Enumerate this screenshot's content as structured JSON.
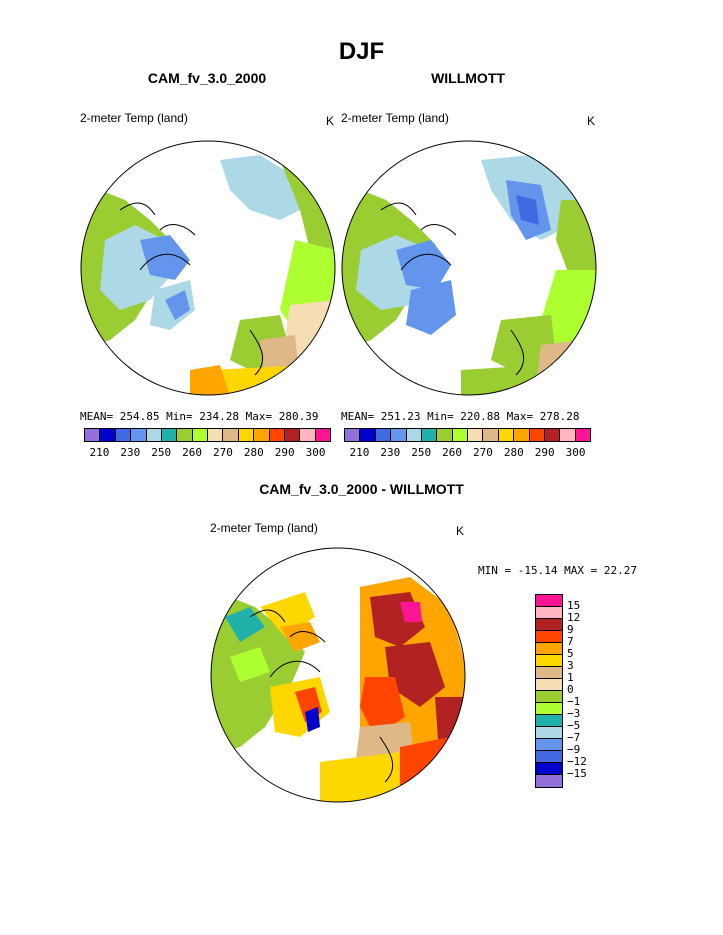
{
  "figure": {
    "title": "DJF",
    "panels": [
      {
        "title": "CAM_fv_3.0_2000",
        "variable": "2-meter Temp (land)",
        "units": "K",
        "mean_label": "MEAN=",
        "mean": "254.85",
        "min_label": "Min=",
        "min": "234.28",
        "max_label": "Max=",
        "max": "280.39"
      },
      {
        "title": "WILLMOTT",
        "variable": "2-meter Temp (land)",
        "units": "K",
        "mean_label": "MEAN=",
        "mean": "251.23",
        "min_label": "Min=",
        "min": "220.88",
        "max_label": "Max=",
        "max": "278.28"
      }
    ],
    "diff_panel": {
      "title": "CAM_fv_3.0_2000 - WILLMOTT",
      "variable": "2-meter Temp (land)",
      "units": "K",
      "minmax_text": "MIN = -15.14 MAX =  22.27"
    }
  },
  "legend_abs": {
    "colors": [
      "#9370db",
      "#0000cd",
      "#4169e1",
      "#6495ed",
      "#add8e6",
      "#20b2aa",
      "#9acd32",
      "#adff2f",
      "#f5deb3",
      "#deb887",
      "#ffd700",
      "#ffa500",
      "#ff4500",
      "#b22222",
      "#ffb6c1",
      "#ff1493"
    ],
    "labels": [
      "210",
      "230",
      "250",
      "260",
      "270",
      "280",
      "290",
      "300"
    ]
  },
  "legend_diff": {
    "colors": [
      "#ff1493",
      "#ffb6c1",
      "#b22222",
      "#ff4500",
      "#ffa500",
      "#ffd700",
      "#deb887",
      "#f5deb3",
      "#9acd32",
      "#adff2f",
      "#20b2aa",
      "#add8e6",
      "#6495ed",
      "#4169e1",
      "#0000cd",
      "#9370db"
    ],
    "labels": [
      "15",
      "12",
      "9",
      "7",
      "5",
      "3",
      "1",
      "0",
      "-1",
      "-3",
      "-5",
      "-7",
      "-9",
      "-12",
      "-15"
    ]
  },
  "map_fill": {
    "land_base": "#add8e6",
    "ocean": "#ffffff"
  }
}
